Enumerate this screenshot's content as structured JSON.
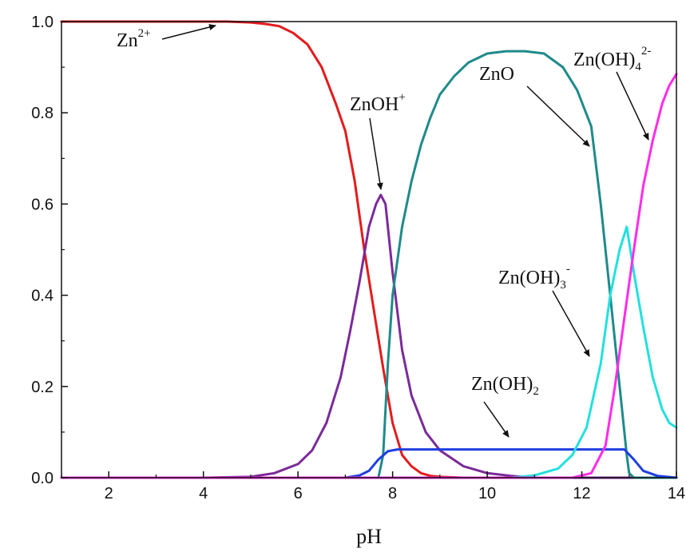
{
  "chart_data": {
    "type": "line",
    "title": "",
    "xlabel": "pH",
    "ylabel": "",
    "xlim": [
      1,
      14
    ],
    "ylim": [
      0,
      1.0
    ],
    "grid": false,
    "legend": "none",
    "x_ticks": [
      2,
      4,
      6,
      8,
      10,
      12,
      14
    ],
    "y_ticks": [
      "0.0",
      "0.2",
      "0.4",
      "0.6",
      "0.8",
      "1.0"
    ],
    "series": [
      {
        "name": "Zn2+",
        "color": "#e41a1c",
        "x": [
          1,
          2,
          3,
          4,
          4.5,
          5,
          5.3,
          5.6,
          5.9,
          6.2,
          6.5,
          6.8,
          7.0,
          7.2,
          7.4,
          7.6,
          7.8,
          8.0,
          8.2,
          8.4,
          8.6,
          8.8,
          9.0,
          9.5,
          10,
          12,
          14
        ],
        "y": [
          1.0,
          1.0,
          1.0,
          1.0,
          1.0,
          0.998,
          0.995,
          0.99,
          0.975,
          0.95,
          0.9,
          0.82,
          0.76,
          0.65,
          0.5,
          0.37,
          0.24,
          0.12,
          0.05,
          0.025,
          0.01,
          0.004,
          0.002,
          0,
          0,
          0,
          0
        ]
      },
      {
        "name": "ZnOH+",
        "color": "#7b2a9a",
        "x": [
          1,
          4,
          5,
          5.5,
          6,
          6.3,
          6.6,
          6.9,
          7.1,
          7.3,
          7.5,
          7.65,
          7.75,
          7.85,
          8.0,
          8.2,
          8.4,
          8.7,
          9.0,
          9.5,
          10,
          10.5,
          11,
          14
        ],
        "y": [
          0,
          0,
          0.002,
          0.01,
          0.03,
          0.06,
          0.12,
          0.22,
          0.32,
          0.43,
          0.55,
          0.6,
          0.62,
          0.6,
          0.45,
          0.28,
          0.18,
          0.1,
          0.06,
          0.025,
          0.01,
          0.004,
          0,
          0
        ]
      },
      {
        "name": "ZnO",
        "color": "#1f8a8a",
        "x": [
          1,
          7.7,
          7.8,
          7.9,
          8.0,
          8.2,
          8.4,
          8.6,
          8.8,
          9.0,
          9.3,
          9.6,
          10.0,
          10.4,
          10.8,
          11.2,
          11.6,
          11.9,
          12.2,
          12.4,
          12.6,
          12.8,
          12.95,
          13.0,
          13.1,
          14
        ],
        "y": [
          0,
          0,
          0.05,
          0.25,
          0.4,
          0.55,
          0.65,
          0.73,
          0.79,
          0.84,
          0.88,
          0.91,
          0.93,
          0.935,
          0.935,
          0.93,
          0.9,
          0.85,
          0.77,
          0.6,
          0.4,
          0.2,
          0.05,
          0.01,
          0,
          0
        ]
      },
      {
        "name": "Zn(OH)2",
        "color": "#1f3fe0",
        "x": [
          1,
          7.0,
          7.3,
          7.5,
          7.7,
          7.9,
          8.1,
          9,
          10,
          11,
          12,
          12.5,
          12.9,
          13.1,
          13.3,
          13.6,
          14
        ],
        "y": [
          0,
          0,
          0.005,
          0.015,
          0.04,
          0.058,
          0.062,
          0.062,
          0.062,
          0.062,
          0.062,
          0.062,
          0.062,
          0.04,
          0.015,
          0.004,
          0
        ]
      },
      {
        "name": "Zn(OH)3-",
        "color": "#22e0e0",
        "x": [
          1,
          10.5,
          11.0,
          11.5,
          11.8,
          12.1,
          12.4,
          12.6,
          12.8,
          12.95,
          13.1,
          13.3,
          13.5,
          13.7,
          13.85,
          14
        ],
        "y": [
          0,
          0,
          0.005,
          0.02,
          0.05,
          0.11,
          0.25,
          0.4,
          0.5,
          0.55,
          0.45,
          0.33,
          0.22,
          0.15,
          0.12,
          0.11
        ]
      },
      {
        "name": "Zn(OH)4 2-",
        "color": "#ff2bea",
        "x": [
          1,
          11.8,
          12.2,
          12.5,
          12.7,
          12.9,
          13.1,
          13.3,
          13.5,
          13.7,
          13.85,
          14
        ],
        "y": [
          0,
          0,
          0.01,
          0.07,
          0.2,
          0.35,
          0.5,
          0.64,
          0.74,
          0.82,
          0.86,
          0.885
        ]
      }
    ],
    "annotations": [
      {
        "text": "Zn",
        "sup": "2+",
        "sub": ""
      },
      {
        "text": "ZnOH",
        "sup": "+",
        "sub": ""
      },
      {
        "text": "ZnO",
        "sup": "",
        "sub": ""
      },
      {
        "text": "Zn(OH)",
        "sup": "2-",
        "sub": "4"
      },
      {
        "text": "Zn(OH)",
        "sup": "-",
        "sub": "3"
      },
      {
        "text": "Zn(OH)",
        "sup": "",
        "sub": "2"
      }
    ]
  }
}
